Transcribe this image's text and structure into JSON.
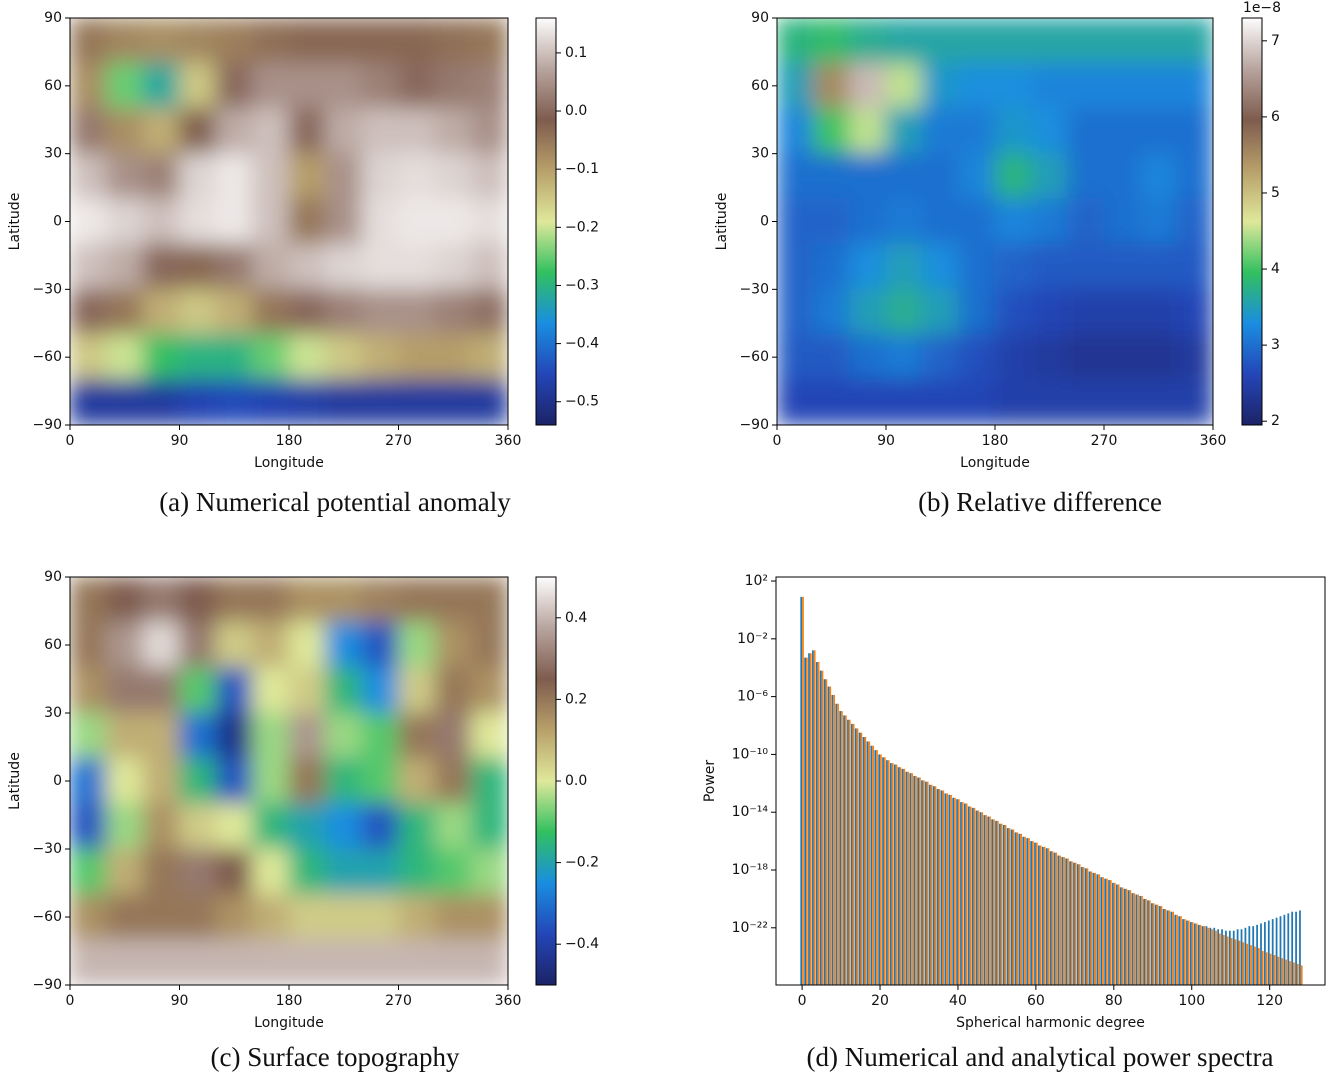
{
  "chart_data": [
    {
      "type": "heatmap",
      "caption": "(a) Numerical potential anomaly",
      "xlabel": "Longitude",
      "ylabel": "Latitude",
      "x": [
        15,
        45,
        75,
        105,
        135,
        165,
        195,
        225,
        255,
        285,
        315,
        345
      ],
      "y": [
        80,
        60,
        40,
        20,
        0,
        -20,
        -40,
        -60,
        -80
      ],
      "z": [
        [
          -0.05,
          -0.07,
          -0.08,
          -0.07,
          -0.06,
          -0.04,
          -0.03,
          -0.03,
          -0.03,
          -0.03,
          -0.04,
          -0.05
        ],
        [
          -0.08,
          -0.25,
          -0.32,
          -0.15,
          0.0,
          0.05,
          0.05,
          0.05,
          0.03,
          0.0,
          0.02,
          0.03
        ],
        [
          0.02,
          -0.08,
          -0.12,
          -0.02,
          0.08,
          0.1,
          0.0,
          0.08,
          0.1,
          0.1,
          0.08,
          0.05
        ],
        [
          0.1,
          0.05,
          0.03,
          0.12,
          0.14,
          0.1,
          -0.1,
          0.05,
          0.12,
          0.13,
          0.12,
          0.1
        ],
        [
          0.14,
          0.12,
          0.1,
          0.13,
          0.14,
          0.1,
          -0.05,
          0.05,
          0.13,
          0.14,
          0.14,
          0.13
        ],
        [
          0.1,
          0.08,
          0.0,
          -0.03,
          0.02,
          0.08,
          0.1,
          0.12,
          0.13,
          0.13,
          0.12,
          0.1
        ],
        [
          0.0,
          -0.05,
          -0.12,
          -0.15,
          -0.12,
          -0.05,
          0.0,
          0.03,
          0.05,
          0.05,
          0.03,
          0.01
        ],
        [
          -0.15,
          -0.2,
          -0.28,
          -0.3,
          -0.3,
          -0.25,
          -0.2,
          -0.15,
          -0.12,
          -0.1,
          -0.1,
          -0.12
        ],
        [
          -0.48,
          -0.48,
          -0.48,
          -0.46,
          -0.45,
          -0.46,
          -0.47,
          -0.48,
          -0.48,
          -0.48,
          -0.48,
          -0.48
        ]
      ],
      "xlim": [
        0,
        360
      ],
      "ylim": [
        -90,
        90
      ],
      "xticks": [
        0,
        90,
        180,
        270,
        360
      ],
      "yticks": [
        90,
        60,
        30,
        0,
        {
          "value": -30,
          "label": "−30"
        },
        {
          "value": -60,
          "label": "−60"
        },
        {
          "value": -90,
          "label": "−90"
        }
      ],
      "zlim": [
        -0.54,
        0.16
      ],
      "zticks": [
        {
          "value": -0.5,
          "label": "−0.5"
        },
        {
          "value": -0.4,
          "label": "−0.4"
        },
        {
          "value": -0.3,
          "label": "−0.3"
        },
        {
          "value": -0.2,
          "label": "−0.2"
        },
        {
          "value": -0.1,
          "label": "−0.1"
        },
        {
          "value": 0,
          "label": "0.0"
        },
        0.1
      ],
      "colormap": [
        "#1c2366",
        "#2446b8",
        "#1a8ee0",
        "#32c060",
        "#dfe89a",
        "#b8a06a",
        "#7e5c4e",
        "#b8a49e",
        "#fdfcfc"
      ]
    },
    {
      "type": "heatmap",
      "caption": "(b) Relative difference",
      "xlabel": "Longitude",
      "ylabel": "Latitude",
      "x": [
        15,
        45,
        75,
        105,
        135,
        165,
        195,
        225,
        255,
        285,
        315,
        345
      ],
      "y": [
        80,
        60,
        40,
        20,
        0,
        -20,
        -40,
        -60,
        -80
      ],
      "z": [
        [
          3.8,
          3.9,
          3.7,
          3.6,
          3.6,
          3.6,
          3.6,
          3.6,
          3.6,
          3.6,
          3.6,
          3.6
        ],
        [
          3.5,
          5.5,
          6.8,
          4.5,
          3.4,
          3.3,
          3.3,
          3.2,
          3.2,
          3.2,
          3.2,
          3.2
        ],
        [
          3.2,
          4.0,
          4.5,
          3.5,
          3.1,
          3.1,
          3.4,
          3.3,
          3.0,
          3.0,
          3.0,
          3.0
        ],
        [
          3.0,
          3.0,
          3.0,
          3.0,
          3.0,
          3.2,
          3.8,
          3.5,
          3.0,
          3.0,
          3.2,
          3.0
        ],
        [
          2.9,
          2.9,
          3.0,
          3.1,
          3.0,
          3.0,
          3.2,
          3.1,
          2.9,
          3.0,
          3.1,
          2.9
        ],
        [
          2.9,
          3.0,
          3.3,
          3.5,
          3.3,
          3.0,
          2.9,
          2.8,
          2.8,
          2.8,
          2.8,
          2.8
        ],
        [
          2.9,
          3.1,
          3.5,
          3.7,
          3.5,
          3.0,
          2.7,
          2.6,
          2.5,
          2.5,
          2.5,
          2.6
        ],
        [
          2.8,
          2.8,
          3.0,
          3.1,
          2.9,
          2.7,
          2.5,
          2.4,
          2.3,
          2.3,
          2.3,
          2.4
        ],
        [
          2.6,
          2.6,
          2.6,
          2.6,
          2.6,
          2.6,
          2.5,
          2.5,
          2.5,
          2.5,
          2.5,
          2.5
        ]
      ],
      "xlim": [
        0,
        360
      ],
      "ylim": [
        -90,
        90
      ],
      "xticks": [
        0,
        90,
        180,
        270,
        360
      ],
      "yticks": [
        90,
        60,
        30,
        0,
        {
          "value": -30,
          "label": "−30"
        },
        {
          "value": -60,
          "label": "−60"
        },
        {
          "value": -90,
          "label": "−90"
        }
      ],
      "zlim": [
        1.95,
        7.3
      ],
      "zticks": [
        2,
        3,
        4,
        5,
        6,
        7
      ],
      "colorbar_offset": "1e−8",
      "colormap": [
        "#1c2366",
        "#2446b8",
        "#1a8ee0",
        "#32c060",
        "#dfe89a",
        "#b8a06a",
        "#7e5c4e",
        "#b8a49e",
        "#fdfcfc"
      ]
    },
    {
      "type": "heatmap",
      "caption": "(c) Surface topography",
      "xlabel": "Longitude",
      "ylabel": "Latitude",
      "x": [
        15,
        45,
        75,
        105,
        135,
        165,
        195,
        225,
        255,
        285,
        315,
        345
      ],
      "y": [
        80,
        60,
        40,
        20,
        0,
        -20,
        -40,
        -60,
        -80
      ],
      "z": [
        [
          0.2,
          0.25,
          0.3,
          0.25,
          0.2,
          0.2,
          0.15,
          0.15,
          0.18,
          0.2,
          0.2,
          0.2
        ],
        [
          0.2,
          0.35,
          0.45,
          0.3,
          0.05,
          0.1,
          0.0,
          -0.25,
          -0.35,
          -0.05,
          0.15,
          0.2
        ],
        [
          0.15,
          0.3,
          0.3,
          -0.1,
          -0.35,
          0.0,
          0.05,
          -0.15,
          -0.25,
          0.05,
          0.2,
          0.15
        ],
        [
          -0.05,
          0.1,
          0.1,
          -0.3,
          -0.45,
          -0.05,
          0.35,
          -0.05,
          -0.1,
          0.2,
          0.3,
          0.0
        ],
        [
          -0.3,
          0.0,
          0.1,
          -0.15,
          -0.35,
          -0.05,
          0.2,
          -0.15,
          -0.1,
          0.1,
          0.2,
          -0.15
        ],
        [
          -0.35,
          -0.05,
          0.15,
          0.05,
          0.0,
          -0.15,
          -0.2,
          -0.25,
          -0.35,
          -0.15,
          -0.05,
          -0.15
        ],
        [
          -0.1,
          0.1,
          0.2,
          0.3,
          0.25,
          0.0,
          -0.15,
          -0.2,
          -0.2,
          -0.15,
          -0.1,
          -0.05
        ],
        [
          0.15,
          0.2,
          0.2,
          0.2,
          0.15,
          0.1,
          0.05,
          0.05,
          0.05,
          0.1,
          0.15,
          0.15
        ],
        [
          0.4,
          0.4,
          0.4,
          0.4,
          0.4,
          0.4,
          0.4,
          0.4,
          0.4,
          0.4,
          0.4,
          0.4
        ]
      ],
      "xlim": [
        0,
        360
      ],
      "ylim": [
        -90,
        90
      ],
      "xticks": [
        0,
        90,
        180,
        270,
        360
      ],
      "yticks": [
        90,
        60,
        30,
        0,
        {
          "value": -30,
          "label": "−30"
        },
        {
          "value": -60,
          "label": "−60"
        },
        {
          "value": -90,
          "label": "−90"
        }
      ],
      "zlim": [
        -0.5,
        0.5
      ],
      "zticks": [
        {
          "value": -0.4,
          "label": "−0.4"
        },
        {
          "value": -0.2,
          "label": "−0.2"
        },
        {
          "value": 0,
          "label": "0.0"
        },
        0.2,
        0.4
      ],
      "colormap": [
        "#1c2366",
        "#2446b8",
        "#1a8ee0",
        "#32c060",
        "#dfe89a",
        "#b8a06a",
        "#7e5c4e",
        "#b8a49e",
        "#fdfcfc"
      ]
    },
    {
      "type": "bar",
      "caption": "(d) Numerical and analytical power spectra",
      "xlabel": "Spherical harmonic degree",
      "ylabel": "Power",
      "yscale": "log",
      "xlim": [
        -6.7,
        134.2
      ],
      "ylim": [
        1.1e-26,
        190
      ],
      "xticks": [
        0,
        20,
        40,
        60,
        80,
        100,
        120
      ],
      "yticks": [
        {
          "value": 100,
          "label": "10²"
        },
        {
          "value": 0.01,
          "label": "10⁻²"
        },
        {
          "value": 1e-06,
          "label": "10⁻⁶"
        },
        {
          "value": 1e-10,
          "label": "10⁻¹⁰"
        },
        {
          "value": 1e-14,
          "label": "10⁻¹⁴"
        },
        {
          "value": 1e-18,
          "label": "10⁻¹⁸"
        },
        {
          "value": 1e-22,
          "label": "10⁻²²"
        }
      ],
      "x": [
        0,
        1,
        2,
        3,
        4,
        5,
        6,
        7,
        8,
        9,
        10,
        11,
        12,
        13,
        14,
        15,
        16,
        17,
        18,
        19,
        20,
        21,
        22,
        23,
        24,
        25,
        26,
        27,
        28,
        29,
        30,
        31,
        32,
        33,
        34,
        35,
        36,
        37,
        38,
        39,
        40,
        41,
        42,
        43,
        44,
        45,
        46,
        47,
        48,
        49,
        50,
        51,
        52,
        53,
        54,
        55,
        56,
        57,
        58,
        59,
        60,
        61,
        62,
        63,
        64,
        65,
        66,
        67,
        68,
        69,
        70,
        71,
        72,
        73,
        74,
        75,
        76,
        77,
        78,
        79,
        80,
        81,
        82,
        83,
        84,
        85,
        86,
        87,
        88,
        89,
        90,
        91,
        92,
        93,
        94,
        95,
        96,
        97,
        98,
        99,
        100,
        101,
        102,
        103,
        104,
        105,
        106,
        107,
        108,
        109,
        110,
        111,
        112,
        113,
        114,
        115,
        116,
        117,
        118,
        119,
        120,
        121,
        122,
        123,
        124,
        125,
        126,
        127,
        128
      ],
      "series": [
        {
          "color": "#1f77b4",
          "values": [
            8,
            0.0005,
            0.001,
            0.0016,
            0.00025,
            6.3e-05,
            1.6e-05,
            5e-06,
            1.3e-06,
            3.2e-07,
            1e-07,
            5e-08,
            2.5e-08,
            1.3e-08,
            6.3e-09,
            3.2e-09,
            1.6e-09,
            7.9e-10,
            4e-10,
            2e-10,
            1e-10,
            6.3e-11,
            4e-11,
            2.5e-11,
            2e-11,
            1.3e-11,
            1e-11,
            6.3e-12,
            5e-12,
            3.2e-12,
            2.5e-12,
            1.6e-12,
            1.3e-12,
            7.9e-13,
            6.3e-13,
            4e-13,
            3.2e-13,
            2e-13,
            1.6e-13,
            1e-13,
            7.9e-14,
            5e-14,
            4e-14,
            2.5e-14,
            2e-14,
            1.3e-14,
            1e-14,
            6.3e-15,
            5e-15,
            3.2e-15,
            2.5e-15,
            1.6e-15,
            1.3e-15,
            7.9e-16,
            6.3e-16,
            4e-16,
            3.2e-16,
            2e-16,
            1.6e-16,
            1e-16,
            7.9e-17,
            5e-17,
            4e-17,
            3.2e-17,
            2e-17,
            1.6e-17,
            1e-17,
            7.9e-18,
            6.3e-18,
            4e-18,
            3.2e-18,
            2.5e-18,
            1.6e-18,
            1.3e-18,
            7.9e-19,
            6.3e-19,
            5e-19,
            3.2e-19,
            2.5e-19,
            2e-19,
            1.3e-19,
            1e-19,
            6.3e-20,
            5e-20,
            4e-20,
            2.5e-20,
            2e-20,
            1.6e-20,
            1e-20,
            7.9e-21,
            5e-21,
            4e-21,
            3.2e-21,
            2e-21,
            1.6e-21,
            1.3e-21,
            7.9e-22,
            6.3e-22,
            4e-22,
            3.2e-22,
            2.5e-22,
            2e-22,
            1.6e-22,
            1.3e-22,
            1.3e-22,
            1e-22,
            1e-22,
            7.9e-23,
            7.9e-23,
            6.3e-23,
            6.3e-23,
            6.3e-23,
            7.9e-23,
            7.9e-23,
            1e-22,
            1.3e-22,
            1.3e-22,
            1.6e-22,
            2e-22,
            2.5e-22,
            3.2e-22,
            4e-22,
            5e-22,
            6.3e-22,
            7.9e-22,
            1e-21,
            1.3e-21,
            1.3e-21,
            1.6e-21
          ]
        },
        {
          "color": "#ff7f0e",
          "values": [
            8,
            0.0005,
            0.001,
            0.0016,
            0.00025,
            6.3e-05,
            1.6e-05,
            5e-06,
            1.3e-06,
            3.2e-07,
            1e-07,
            5e-08,
            2.5e-08,
            1.3e-08,
            6.3e-09,
            3.2e-09,
            1.6e-09,
            7.9e-10,
            4e-10,
            2e-10,
            1e-10,
            6.3e-11,
            4e-11,
            2.5e-11,
            2e-11,
            1.3e-11,
            1e-11,
            6.3e-12,
            5e-12,
            3.2e-12,
            2.5e-12,
            1.6e-12,
            1.3e-12,
            7.9e-13,
            6.3e-13,
            4e-13,
            3.2e-13,
            2e-13,
            1.6e-13,
            1e-13,
            7.9e-14,
            5e-14,
            4e-14,
            2.5e-14,
            2e-14,
            1.3e-14,
            1e-14,
            6.3e-15,
            5e-15,
            3.2e-15,
            2.5e-15,
            1.6e-15,
            1.3e-15,
            7.9e-16,
            6.3e-16,
            4e-16,
            3.2e-16,
            2e-16,
            1.6e-16,
            1e-16,
            7.9e-17,
            5e-17,
            4e-17,
            3.2e-17,
            2e-17,
            1.6e-17,
            1e-17,
            7.9e-18,
            6.3e-18,
            4e-18,
            3.2e-18,
            2.5e-18,
            1.6e-18,
            1.3e-18,
            7.9e-19,
            6.3e-19,
            5e-19,
            3.2e-19,
            2.5e-19,
            2e-19,
            1.3e-19,
            1e-19,
            6.3e-20,
            5e-20,
            4e-20,
            2.5e-20,
            2e-20,
            1.6e-20,
            1e-20,
            7.9e-21,
            5e-21,
            4e-21,
            3.2e-21,
            2e-21,
            1.6e-21,
            1.3e-21,
            7.9e-22,
            6.3e-22,
            4e-22,
            3.2e-22,
            2.5e-22,
            2e-22,
            1.6e-22,
            1.3e-22,
            1e-22,
            7.9e-23,
            6.3e-23,
            4e-23,
            3.2e-23,
            2.5e-23,
            2e-23,
            1.6e-23,
            1.3e-23,
            1e-23,
            7.9e-24,
            6.3e-24,
            5e-24,
            4e-24,
            2.5e-24,
            2e-24,
            1.6e-24,
            1.3e-24,
            1e-24,
            7.9e-25,
            6.3e-25,
            5e-25,
            4e-25,
            3.2e-25,
            2.5e-25
          ]
        }
      ]
    }
  ]
}
